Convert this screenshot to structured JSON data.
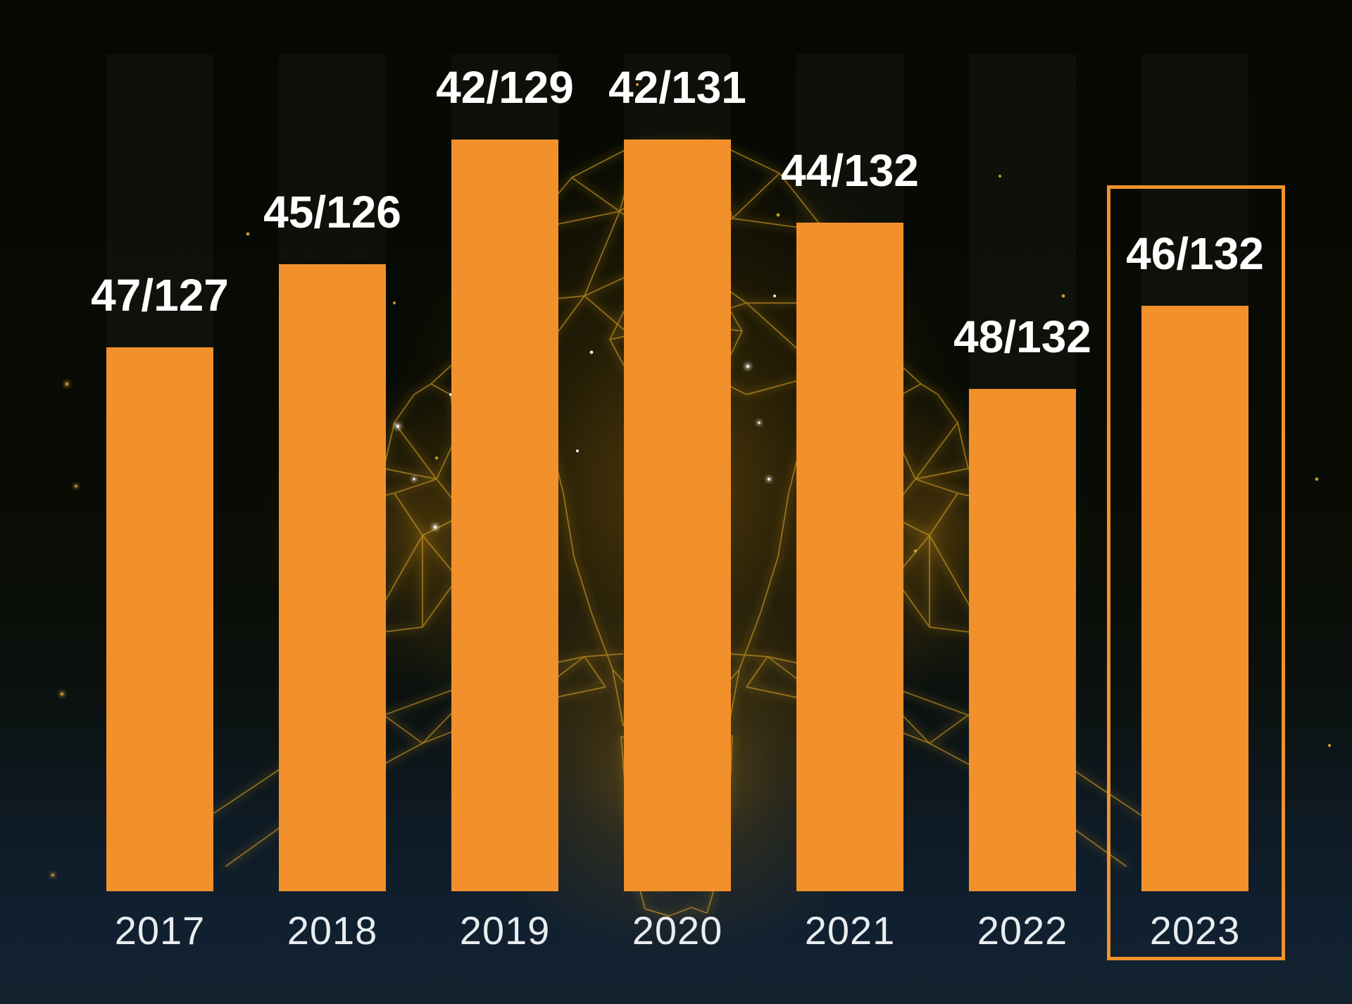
{
  "chart_data": {
    "type": "bar",
    "orientation": "vertical",
    "title": "",
    "xlabel": "",
    "ylabel": "",
    "categories": [
      "2017",
      "2018",
      "2019",
      "2020",
      "2021",
      "2022",
      "2023"
    ],
    "bars": [
      {
        "year": "2017",
        "label": "47/127",
        "rank": 47,
        "total": 127
      },
      {
        "year": "2018",
        "label": "45/126",
        "rank": 45,
        "total": 126
      },
      {
        "year": "2019",
        "label": "42/129",
        "rank": 42,
        "total": 129
      },
      {
        "year": "2020",
        "label": "42/131",
        "rank": 42,
        "total": 131
      },
      {
        "year": "2021",
        "label": "44/132",
        "rank": 44,
        "total": 132
      },
      {
        "year": "2022",
        "label": "48/132",
        "rank": 48,
        "total": 132
      },
      {
        "year": "2023",
        "label": "46/132",
        "rank": 46,
        "total": 132
      }
    ],
    "highlighted_year": "2023",
    "value_label_position": "above-bar",
    "legend": "none",
    "grid": "off",
    "colors": {
      "bar": "#F2902C",
      "highlight_border": "#F0912D",
      "value_label": "#FFFFFF",
      "year_label": "#E9EDF0",
      "background_top": "#060903",
      "background_bottom": "#13222E",
      "artwork_gold": "#D79F24"
    }
  }
}
